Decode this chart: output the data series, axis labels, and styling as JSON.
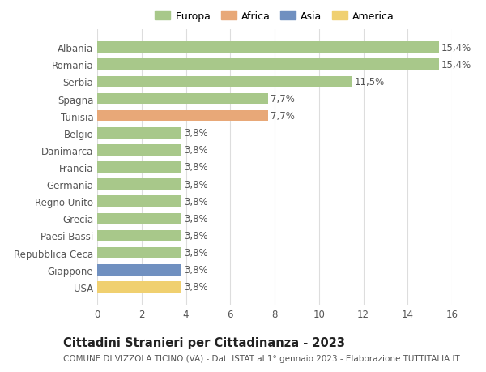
{
  "title_bold": "Cittadini Stranieri per Cittadinanza - 2023",
  "subtitle": "COMUNE DI VIZZOLA TICINO (VA) - Dati ISTAT al 1° gennaio 2023 - Elaborazione TUTTITALIA.IT",
  "categories": [
    "Albania",
    "Romania",
    "Serbia",
    "Spagna",
    "Tunisia",
    "Belgio",
    "Danimarca",
    "Francia",
    "Germania",
    "Regno Unito",
    "Grecia",
    "Paesi Bassi",
    "Repubblica Ceca",
    "Giappone",
    "USA"
  ],
  "values": [
    15.4,
    15.4,
    11.5,
    7.7,
    7.7,
    3.8,
    3.8,
    3.8,
    3.8,
    3.8,
    3.8,
    3.8,
    3.8,
    3.8,
    3.8
  ],
  "colors": [
    "#a8c88a",
    "#a8c88a",
    "#a8c88a",
    "#a8c88a",
    "#e8a878",
    "#a8c88a",
    "#a8c88a",
    "#a8c88a",
    "#a8c88a",
    "#a8c88a",
    "#a8c88a",
    "#a8c88a",
    "#a8c88a",
    "#7090c0",
    "#f0d070"
  ],
  "labels": [
    "15,4%",
    "15,4%",
    "11,5%",
    "7,7%",
    "7,7%",
    "3,8%",
    "3,8%",
    "3,8%",
    "3,8%",
    "3,8%",
    "3,8%",
    "3,8%",
    "3,8%",
    "3,8%",
    "3,8%"
  ],
  "xlim": [
    0,
    16
  ],
  "xticks": [
    0,
    2,
    4,
    6,
    8,
    10,
    12,
    14,
    16
  ],
  "legend_labels": [
    "Europa",
    "Africa",
    "Asia",
    "America"
  ],
  "legend_colors": [
    "#a8c88a",
    "#e8a878",
    "#7090c0",
    "#f0d070"
  ],
  "background_color": "#ffffff",
  "bar_height": 0.65,
  "label_fontsize": 8.5,
  "tick_fontsize": 8.5,
  "title_fontsize": 10.5,
  "subtitle_fontsize": 7.5
}
